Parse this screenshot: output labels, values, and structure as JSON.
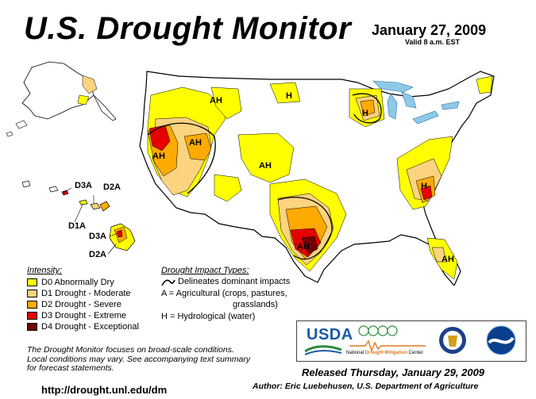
{
  "header": {
    "title": "U.S. Drought Monitor",
    "date": "January 27, 2009",
    "valid": "Valid 8 a.m. EST"
  },
  "colors": {
    "water": "#8ecae8",
    "d0": "#ffff00",
    "d1": "#fcd37f",
    "d2": "#ffaa00",
    "d3": "#e60000",
    "d4": "#730000"
  },
  "map_labels": {
    "ah_idaho": "AH",
    "h_minnesota": "H",
    "h_wisconsin": "H",
    "ah_oregon": "AH",
    "ah_california": "AH",
    "ah_colorado": "AH",
    "ah_texas": "AH",
    "h_georgia": "H",
    "ah_florida": "AH"
  },
  "hawaii_labels": {
    "d3a_kauai": "D3A",
    "d2a_maui": "D2A",
    "d1a_molokai": "D1A",
    "d3a_bigisland": "D3A",
    "d2a_bigisland": "D2A"
  },
  "legend": {
    "title": "Intensity:",
    "items": [
      {
        "label": "D0 Abnormally Dry",
        "color": "#ffff00"
      },
      {
        "label": "D1 Drought - Moderate",
        "color": "#fcd37f"
      },
      {
        "label": "D2 Drought - Severe",
        "color": "#ffaa00"
      },
      {
        "label": "D3 Drought - Extreme",
        "color": "#e60000"
      },
      {
        "label": "D4 Drought - Exceptional",
        "color": "#730000"
      }
    ]
  },
  "impacts": {
    "title": "Drought Impact Types:",
    "delineates": "Delineates dominant impacts",
    "agricultural_1": "A = Agricultural (crops, pastures,",
    "agricultural_2": "grasslands)",
    "hydrological": "H = Hydrological (water)"
  },
  "disclaimer": {
    "line1": "The Drought Monitor focuses on broad-scale conditions.",
    "line2": "Local conditions may vary. See accompanying text summary",
    "line3": "for forecast statements."
  },
  "logos": {
    "usda": "USDA",
    "ndmc_prefix": "National ",
    "ndmc_mid": "Drought Mitigation",
    "ndmc_suffix": " Center",
    "usda_color": "#1a5aa6",
    "ndmc_orange": "#e07a1f"
  },
  "footer": {
    "url": "http://drought.unl.edu/dm",
    "released": "Released Thursday, January 29, 2009",
    "author": "Author: Eric Luebehusen, U.S. Department of Agriculture"
  }
}
